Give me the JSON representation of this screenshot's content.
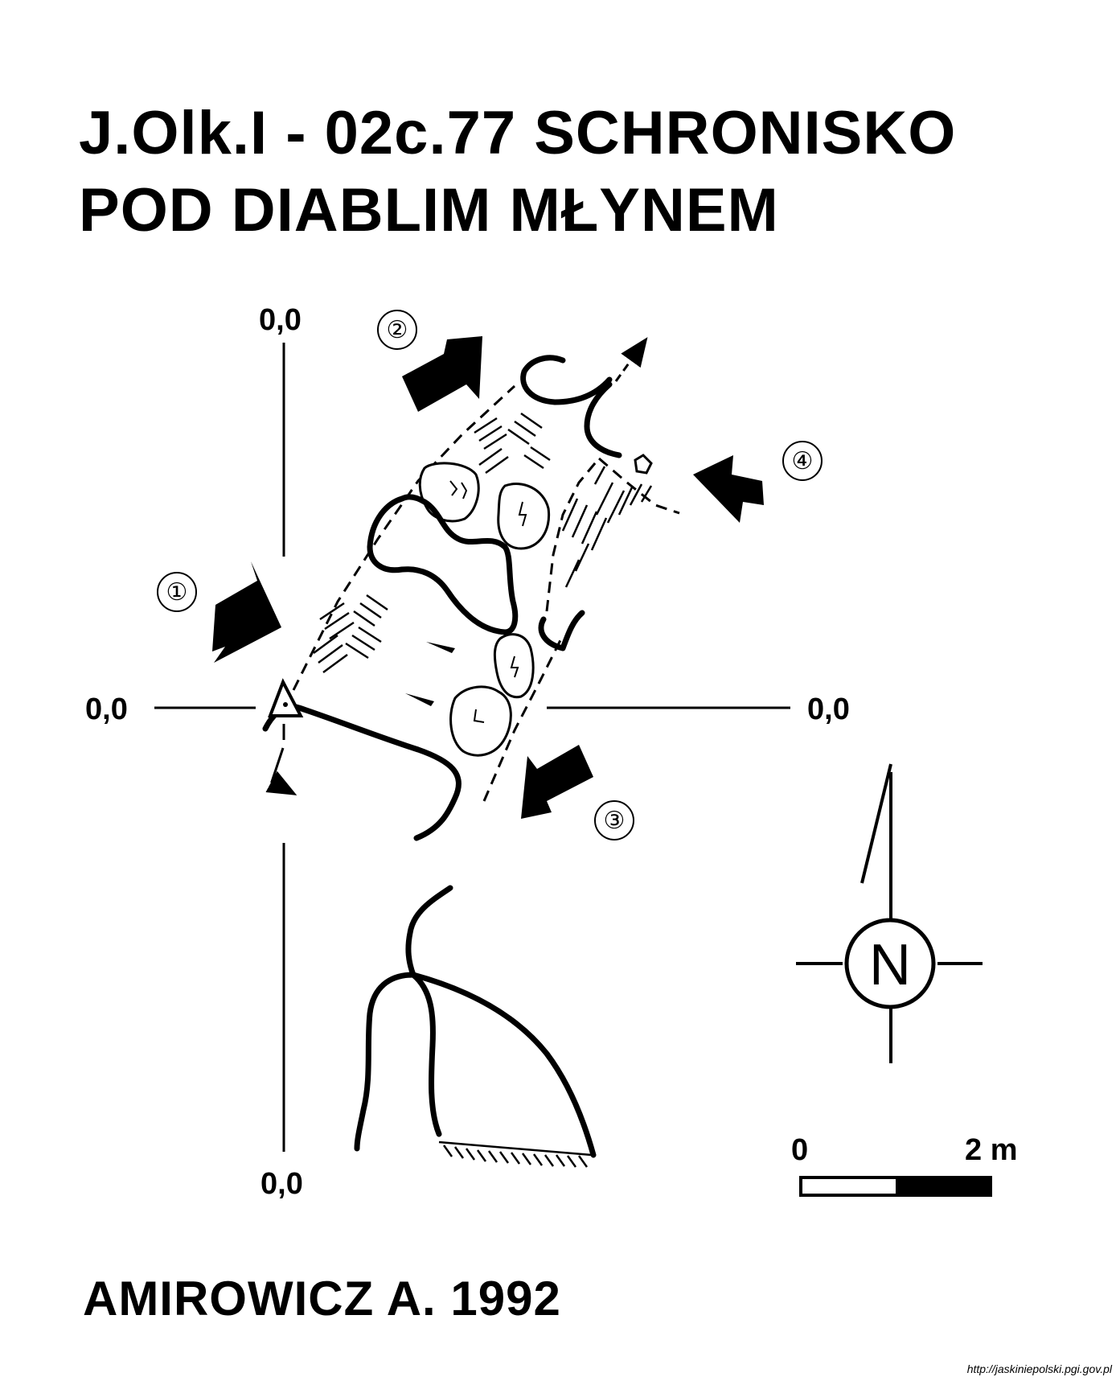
{
  "title": {
    "line1": "J.Olk.I - 02c.77  SCHRONISKO",
    "line2": "POD DIABLIM MŁYNEM"
  },
  "datum_labels": {
    "top": "0,0",
    "left": "0,0",
    "right": "0,0",
    "bottom": "0,0"
  },
  "view_markers": [
    "①",
    "②",
    "③",
    "④"
  ],
  "compass": {
    "label": "N",
    "icon": "north-compass-icon"
  },
  "scale_bar": {
    "start": "0",
    "end": "2 m"
  },
  "author": "AMIROWICZ A. 1992",
  "source": "http://jaskiniepolski.pgi.gov.pl",
  "colors": {
    "ink": "#000000",
    "paper": "#ffffff"
  }
}
